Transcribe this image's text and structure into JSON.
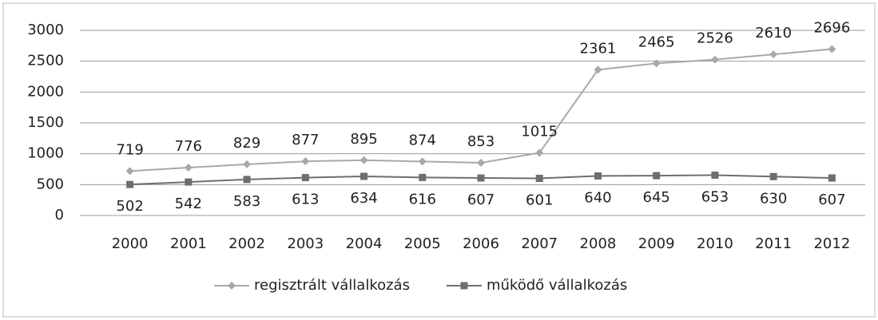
{
  "chart_data": {
    "type": "line",
    "categories": [
      "2000",
      "2001",
      "2002",
      "2003",
      "2004",
      "2005",
      "2006",
      "2007",
      "2008",
      "2009",
      "2010",
      "2011",
      "2012"
    ],
    "series": [
      {
        "name": "regisztrált vállalkozás",
        "color": "#a8a8a8",
        "marker": "diamond",
        "values": [
          719,
          776,
          829,
          877,
          895,
          874,
          853,
          1015,
          2361,
          2465,
          2526,
          2610,
          2696
        ]
      },
      {
        "name": "működő vállalkozás",
        "color": "#6e6e6e",
        "marker": "square",
        "values": [
          502,
          542,
          583,
          613,
          634,
          616,
          607,
          601,
          640,
          645,
          653,
          630,
          607
        ]
      }
    ],
    "ylim": [
      0,
      3000
    ],
    "yticks": [
      0,
      500,
      1000,
      1500,
      2000,
      2500,
      3000
    ],
    "grid": true,
    "legend": "bottom"
  }
}
